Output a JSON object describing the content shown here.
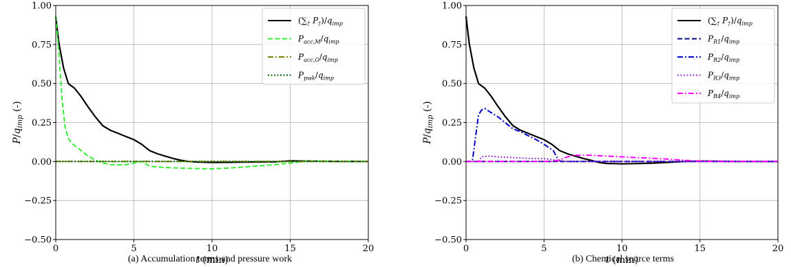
{
  "chart_data": [
    {
      "type": "line",
      "caption": "(a)  Accumulation terms and pressure work",
      "xlabel": "t (min)",
      "ylabel": "P/q_imp (-)",
      "xlim": [
        0,
        20
      ],
      "ylim": [
        -0.5,
        1.0
      ],
      "xticks": [
        0,
        5,
        10,
        15,
        20
      ],
      "xtick_labels": [
        "0",
        "5",
        "10",
        "15",
        "20"
      ],
      "yticks": [
        1.0,
        0.75,
        0.5,
        0.25,
        0.0,
        -0.25,
        -0.5
      ],
      "ytick_labels": [
        "1.00",
        "0.75",
        "0.50",
        "0.25",
        "0.00",
        "−0.25",
        "−0.50"
      ],
      "grid": true,
      "legend_position": "top-right",
      "series": [
        {
          "name": "(∑† P†)/q_imp",
          "color": "#000000",
          "dash": "solid",
          "x": [
            0,
            0.2,
            0.5,
            0.8,
            1.2,
            1.6,
            2,
            2.5,
            3,
            3.5,
            4,
            4.5,
            5,
            5.5,
            6,
            6.5,
            7,
            7.5,
            8,
            8.5,
            9,
            10,
            11,
            12,
            13,
            14,
            15,
            16,
            18,
            20
          ],
          "y": [
            0.93,
            0.76,
            0.6,
            0.5,
            0.47,
            0.42,
            0.36,
            0.29,
            0.23,
            0.2,
            0.18,
            0.16,
            0.14,
            0.11,
            0.07,
            0.05,
            0.035,
            0.02,
            0.008,
            0.0,
            -0.003,
            -0.006,
            -0.005,
            -0.004,
            -0.003,
            -0.002,
            0.004,
            0.003,
            0.001,
            0.0
          ]
        },
        {
          "name": "P_acc,M/q_imp",
          "color": "#33ee33",
          "dash": "dashed",
          "x": [
            0,
            0.2,
            0.4,
            0.6,
            0.8,
            1,
            1.5,
            2,
            2.5,
            3,
            3.5,
            4,
            4.5,
            5,
            5.5,
            6,
            6.5,
            7,
            8,
            9,
            10,
            11,
            12,
            13,
            14,
            15,
            16,
            18,
            20
          ],
          "y": [
            0.93,
            0.7,
            0.4,
            0.22,
            0.15,
            0.12,
            0.08,
            0.04,
            0.01,
            -0.01,
            -0.02,
            -0.022,
            -0.02,
            -0.01,
            0.0,
            -0.03,
            -0.035,
            -0.038,
            -0.042,
            -0.045,
            -0.047,
            -0.042,
            -0.035,
            -0.028,
            -0.02,
            -0.01,
            0.003,
            0.001,
            0.0
          ]
        },
        {
          "name": "P_acc,G/q_imp",
          "color": "#808000",
          "dash": "dashdot",
          "x": [
            0,
            20
          ],
          "y": [
            0.0,
            0.0
          ]
        },
        {
          "name": "P_pwk/q_imp",
          "color": "#006400",
          "dash": "dotted",
          "x": [
            0,
            20
          ],
          "y": [
            0.0,
            0.0
          ]
        }
      ]
    },
    {
      "type": "line",
      "caption": "(b)  Chemical source terms",
      "xlabel": "t (min)",
      "ylabel": "P/q_imp (-)",
      "xlim": [
        0,
        20
      ],
      "ylim": [
        -0.5,
        1.0
      ],
      "xticks": [
        0,
        5,
        10,
        15,
        20
      ],
      "xtick_labels": [
        "0",
        "5",
        "10",
        "15",
        "20"
      ],
      "yticks": [
        1.0,
        0.75,
        0.5,
        0.25,
        0.0,
        -0.25,
        -0.5
      ],
      "ytick_labels": [
        "1.00",
        "0.75",
        "0.50",
        "0.25",
        "0.00",
        "−0.25",
        "−0.50"
      ],
      "grid": true,
      "legend_position": "top-right",
      "series": [
        {
          "name": "(∑† P†)/q_imp",
          "color": "#000000",
          "dash": "solid",
          "x": [
            0,
            0.2,
            0.5,
            0.8,
            1.2,
            1.6,
            2,
            2.5,
            3,
            3.5,
            4,
            4.5,
            5,
            5.5,
            6,
            6.5,
            7,
            7.5,
            8,
            8.5,
            9,
            10,
            11,
            12,
            13,
            14,
            15,
            16,
            18,
            20
          ],
          "y": [
            0.93,
            0.76,
            0.6,
            0.5,
            0.47,
            0.42,
            0.36,
            0.29,
            0.23,
            0.2,
            0.18,
            0.16,
            0.14,
            0.11,
            0.07,
            0.05,
            0.035,
            0.02,
            0.008,
            -0.005,
            -0.012,
            -0.015,
            -0.013,
            -0.01,
            -0.005,
            0.0,
            0.003,
            0.002,
            0.0,
            0.0
          ]
        },
        {
          "name": "P_R1/q_imp",
          "color": "#000080",
          "dash": "dashed",
          "x": [
            0,
            20
          ],
          "y": [
            0.0,
            0.0
          ]
        },
        {
          "name": "P_R2/q_imp",
          "color": "#0000cc",
          "dash": "dashdot",
          "x": [
            0,
            0.4,
            0.6,
            0.8,
            1,
            1.2,
            1.5,
            2,
            2.5,
            3,
            3.5,
            4,
            4.5,
            5,
            5.3,
            5.6,
            5.8,
            6,
            6.2,
            7,
            10,
            20
          ],
          "y": [
            0.0,
            0.0,
            0.15,
            0.3,
            0.33,
            0.34,
            0.32,
            0.29,
            0.25,
            0.21,
            0.19,
            0.165,
            0.14,
            0.11,
            0.09,
            0.07,
            0.03,
            0.005,
            0.0,
            0.0,
            0.0,
            0.0
          ]
        },
        {
          "name": "P_R3/q_imp",
          "color": "#9933cc",
          "dash": "dotted",
          "x": [
            0,
            0.8,
            1,
            1.5,
            2,
            3,
            4,
            5,
            5.5,
            6,
            6.5,
            7,
            8,
            9,
            10,
            12,
            15,
            20
          ],
          "y": [
            0.0,
            0.0,
            0.03,
            0.035,
            0.03,
            0.025,
            0.02,
            0.018,
            0.012,
            0.005,
            0.002,
            0.0,
            0.0,
            0.0,
            0.0,
            0.0,
            0.0,
            0.0
          ]
        },
        {
          "name": "P_R4/q_imp",
          "color": "#ff00ff",
          "dash": "dashdot",
          "x": [
            0,
            5.5,
            6,
            6.5,
            7,
            8,
            9,
            10,
            11,
            12,
            13,
            14,
            15,
            16,
            20
          ],
          "y": [
            0.0,
            0.0,
            0.01,
            0.03,
            0.04,
            0.04,
            0.035,
            0.03,
            0.025,
            0.02,
            0.015,
            0.008,
            0.003,
            0.0,
            0.0
          ]
        }
      ]
    }
  ]
}
